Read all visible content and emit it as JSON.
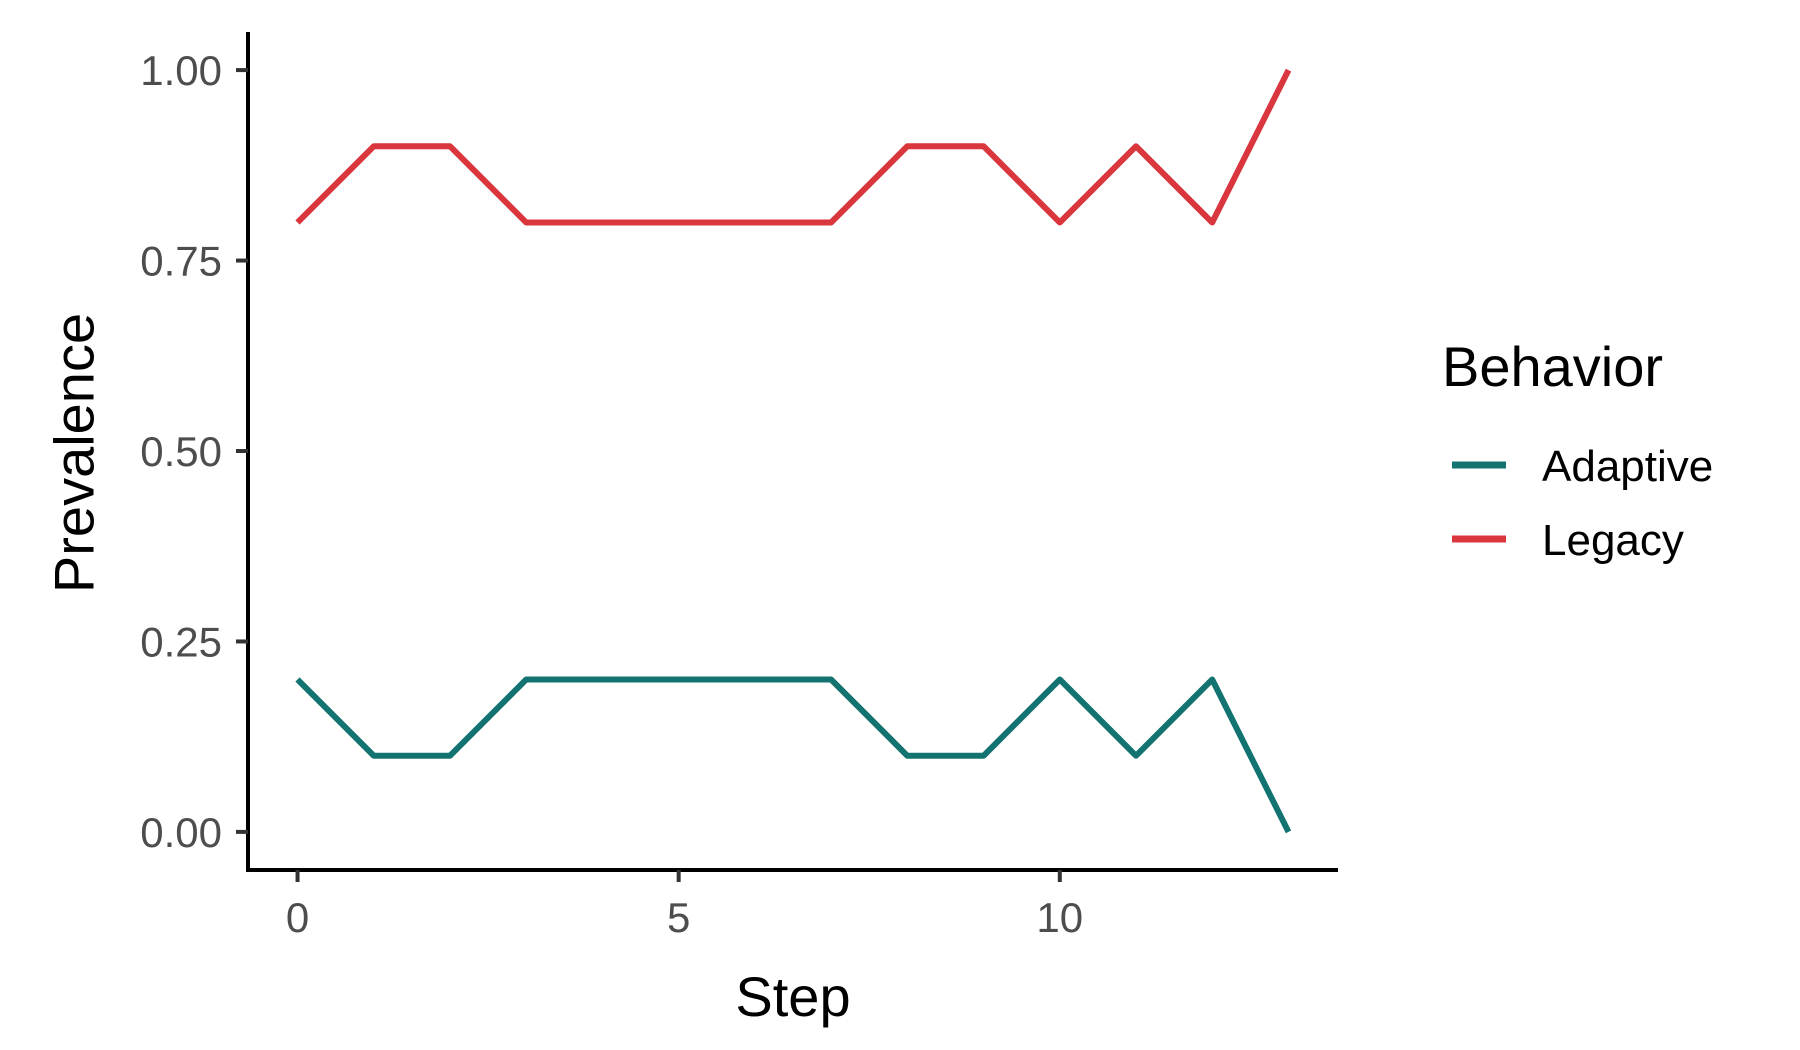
{
  "chart_data": {
    "type": "line",
    "title": "",
    "xlabel": "Step",
    "ylabel": "Prevalence",
    "x": [
      0,
      1,
      2,
      3,
      4,
      5,
      6,
      7,
      8,
      9,
      10,
      11,
      12,
      13
    ],
    "series": [
      {
        "name": "Adaptive",
        "color": "#137370",
        "values": [
          0.2,
          0.1,
          0.1,
          0.2,
          0.2,
          0.2,
          0.2,
          0.2,
          0.1,
          0.1,
          0.2,
          0.1,
          0.2,
          0.0
        ]
      },
      {
        "name": "Legacy",
        "color": "#d9363e",
        "values": [
          0.8,
          0.9,
          0.9,
          0.8,
          0.8,
          0.8,
          0.8,
          0.8,
          0.9,
          0.9,
          0.8,
          0.9,
          0.8,
          1.0
        ]
      }
    ],
    "xlim": [
      -0.65,
      13.65
    ],
    "ylim": [
      -0.05,
      1.05
    ],
    "xticks": [
      0,
      5,
      10
    ],
    "xtick_labels": [
      "0",
      "5",
      "10"
    ],
    "yticks": [
      0,
      0.25,
      0.5,
      0.75,
      1.0
    ],
    "ytick_labels": [
      "0.00",
      "0.25",
      "0.50",
      "0.75",
      "1.00"
    ],
    "grid": false,
    "legend": {
      "title": "Behavior",
      "placement": "right",
      "entries": [
        "Adaptive",
        "Legacy"
      ]
    }
  }
}
